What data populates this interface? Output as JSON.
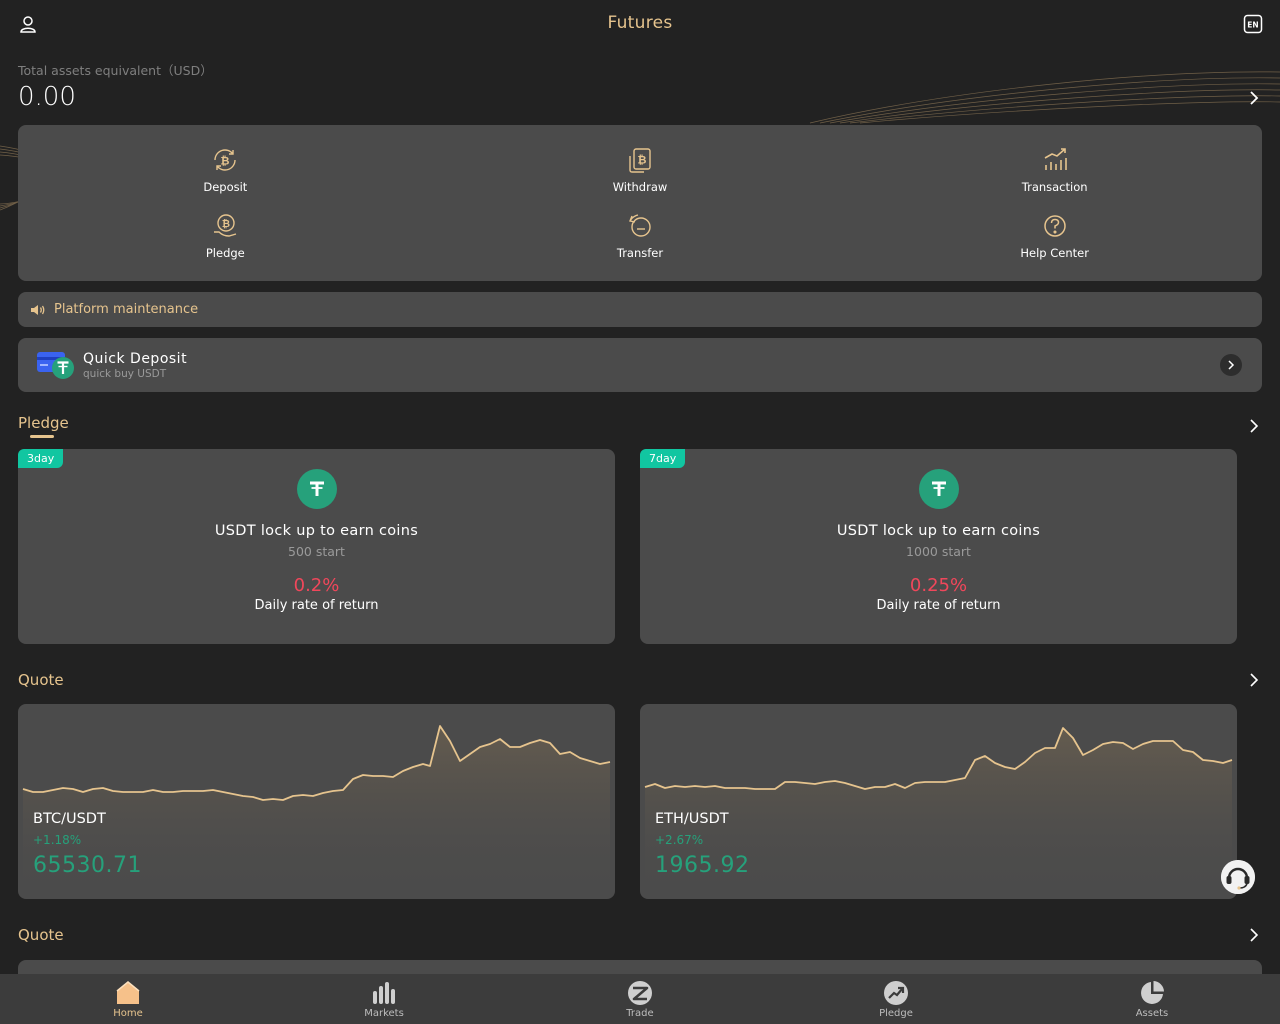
{
  "header": {
    "title": "Futures",
    "user_icon": "user-icon",
    "language_icon": "language-en-icon"
  },
  "assets": {
    "label": "Total assets equivalent（USD）",
    "value": "0.00"
  },
  "actions": [
    {
      "label": "Deposit",
      "icon": "bitcoin-refresh-icon"
    },
    {
      "label": "Withdraw",
      "icon": "bitcoin-card-icon"
    },
    {
      "label": "Transaction",
      "icon": "bar-trend-icon"
    },
    {
      "label": "Pledge",
      "icon": "bitcoin-hand-icon"
    },
    {
      "label": "Transfer",
      "icon": "transfer-clock-icon"
    },
    {
      "label": "Help Center",
      "icon": "question-circle-icon"
    }
  ],
  "notice": {
    "text": "Platform maintenance",
    "icon": "speaker-icon"
  },
  "quick_deposit": {
    "title": "Quick Deposit",
    "subtitle": "quick buy USDT"
  },
  "pledge": {
    "title": "Pledge",
    "cards": [
      {
        "tag": "3day",
        "title": "USDT lock up to earn coins",
        "start": "500 start",
        "rate": "0.2%",
        "rate_label": "Daily rate of return"
      },
      {
        "tag": "7day",
        "title": "USDT lock up to earn coins",
        "start": "1000 start",
        "rate": "0.25%",
        "rate_label": "Daily rate of return"
      }
    ]
  },
  "quote": {
    "title": "Quote",
    "cards": [
      {
        "pair": "BTC/USDT",
        "change": "+1.18%",
        "price": "65530.71",
        "color": "#26a17b"
      },
      {
        "pair": "ETH/USDT",
        "change": "+2.67%",
        "price": "1965.92",
        "color": "#26a17b"
      }
    ]
  },
  "quote2": {
    "title": "Quote"
  },
  "tabbar": [
    {
      "label": "Home",
      "icon": "home-icon",
      "active": true
    },
    {
      "label": "Markets",
      "icon": "bars-chart-icon",
      "active": false
    },
    {
      "label": "Trade",
      "icon": "trade-z-icon",
      "active": false
    },
    {
      "label": "Pledge",
      "icon": "pledge-trend-icon",
      "active": false
    },
    {
      "label": "Assets",
      "icon": "pie-chart-icon",
      "active": false
    }
  ],
  "colors": {
    "accent": "#e6c48e",
    "up": "#26a17b",
    "down": "#f0475b",
    "tag": "#11c6a1",
    "panel": "#4b4b4b",
    "bg": "#222222"
  }
}
